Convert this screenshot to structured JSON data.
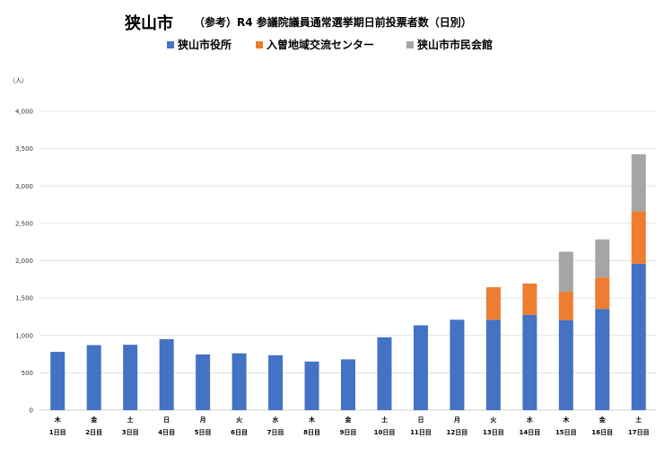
{
  "title_main": "狭山市",
  "title_sub": "（参考）R4 参議院議員通常選挙期日前投票者数（日別）",
  "colors": {
    "s1": "#4472C4",
    "s2": "#ED7D31",
    "s3": "#A5A5A5",
    "grid": "#D9D9D9"
  },
  "chart_data": {
    "type": "bar",
    "stacked": true,
    "title": "（参考）R4 参議院議員通常選挙期日前投票者数（日別）",
    "ylabel": "（人）",
    "ylim": [
      0,
      4000
    ],
    "yticks": [
      "0",
      "500",
      "1,000",
      "1,500",
      "2,000",
      "2,500",
      "3,000",
      "3,500",
      "4,000"
    ],
    "grid": true,
    "legend_position": "top",
    "categories": [
      {
        "weekday": "木",
        "day": "1日目"
      },
      {
        "weekday": "金",
        "day": "2日目"
      },
      {
        "weekday": "土",
        "day": "3日目"
      },
      {
        "weekday": "日",
        "day": "4日目"
      },
      {
        "weekday": "月",
        "day": "5日目"
      },
      {
        "weekday": "火",
        "day": "6日目"
      },
      {
        "weekday": "水",
        "day": "7日目"
      },
      {
        "weekday": "木",
        "day": "8日目"
      },
      {
        "weekday": "金",
        "day": "9日目"
      },
      {
        "weekday": "土",
        "day": "10日目"
      },
      {
        "weekday": "日",
        "day": "11日目"
      },
      {
        "weekday": "月",
        "day": "12日目"
      },
      {
        "weekday": "火",
        "day": "13日目"
      },
      {
        "weekday": "水",
        "day": "14日目"
      },
      {
        "weekday": "木",
        "day": "15日目"
      },
      {
        "weekday": "金",
        "day": "16日目"
      },
      {
        "weekday": "土",
        "day": "17日目"
      }
    ],
    "series": [
      {
        "name": "狭山市役所",
        "color": "#4472C4",
        "values": [
          780,
          870,
          875,
          950,
          745,
          760,
          735,
          650,
          680,
          975,
          1135,
          1210,
          1210,
          1275,
          1205,
          1355,
          1960
        ]
      },
      {
        "name": "入曽地域交流センター",
        "color": "#ED7D31",
        "values": [
          0,
          0,
          0,
          0,
          0,
          0,
          0,
          0,
          0,
          0,
          0,
          0,
          435,
          420,
          380,
          420,
          700
        ]
      },
      {
        "name": "狭山市市民会館",
        "color": "#A5A5A5",
        "values": [
          0,
          0,
          0,
          0,
          0,
          0,
          0,
          0,
          0,
          0,
          0,
          0,
          0,
          0,
          535,
          510,
          765
        ]
      }
    ]
  }
}
